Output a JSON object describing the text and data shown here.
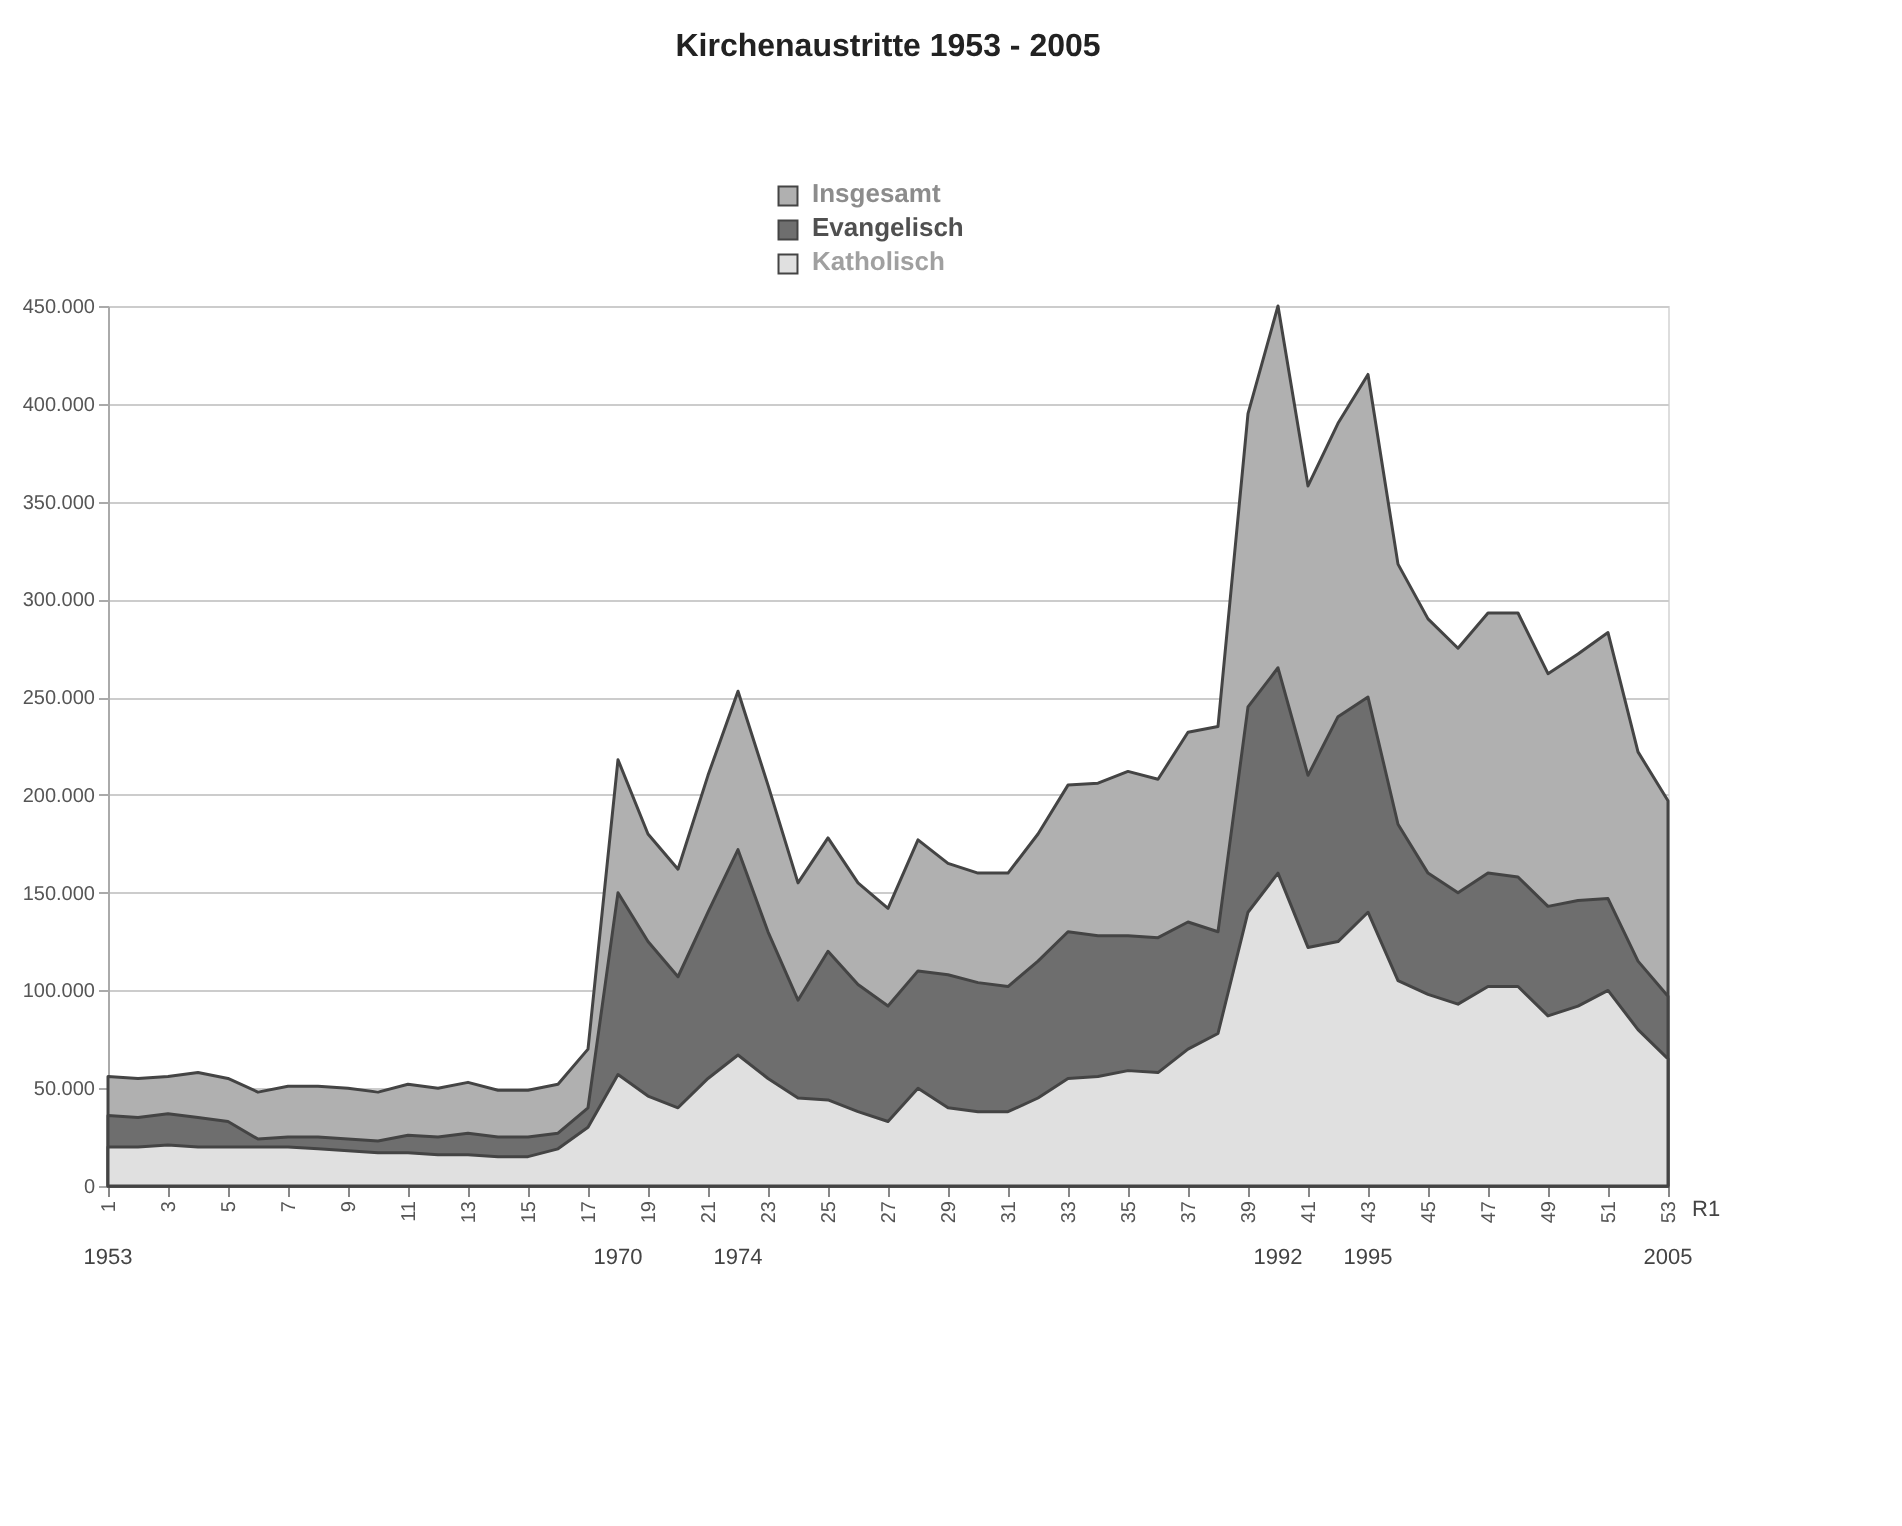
{
  "chart_data": {
    "type": "area",
    "title": "Kirchenaustritte 1953 - 2005",
    "x": [
      1,
      2,
      3,
      4,
      5,
      6,
      7,
      8,
      9,
      10,
      11,
      12,
      13,
      14,
      15,
      16,
      17,
      18,
      19,
      20,
      21,
      22,
      23,
      24,
      25,
      26,
      27,
      28,
      29,
      30,
      31,
      32,
      33,
      34,
      35,
      36,
      37,
      38,
      39,
      40,
      41,
      42,
      43,
      44,
      45,
      46,
      47,
      48,
      49,
      50,
      51,
      52,
      53
    ],
    "series": [
      {
        "name": "Insgesamt",
        "color": "#b0b0b0",
        "values": [
          56000,
          55000,
          56000,
          58000,
          55000,
          48000,
          51000,
          51000,
          50000,
          48000,
          52000,
          50000,
          53000,
          49000,
          49000,
          52000,
          70000,
          218000,
          180000,
          162000,
          210000,
          253000,
          205000,
          155000,
          178000,
          155000,
          142000,
          177000,
          165000,
          160000,
          160000,
          180000,
          205000,
          206000,
          212000,
          208000,
          232000,
          235000,
          395000,
          450000,
          358000,
          390000,
          415000,
          318000,
          290000,
          275000,
          293000,
          293000,
          262000,
          272000,
          283000,
          222000,
          197000
        ]
      },
      {
        "name": "Evangelisch",
        "color": "#6e6e6e",
        "values": [
          36000,
          35000,
          37000,
          35000,
          33000,
          24000,
          25000,
          25000,
          24000,
          23000,
          26000,
          25000,
          27000,
          25000,
          25000,
          27000,
          40000,
          150000,
          125000,
          107000,
          140000,
          172000,
          130000,
          95000,
          120000,
          103000,
          92000,
          110000,
          108000,
          104000,
          102000,
          115000,
          130000,
          128000,
          128000,
          127000,
          135000,
          130000,
          245000,
          265000,
          210000,
          240000,
          250000,
          185000,
          160000,
          150000,
          160000,
          158000,
          143000,
          146000,
          147000,
          115000,
          97000
        ]
      },
      {
        "name": "Katholisch",
        "color": "#e0e0e0",
        "values": [
          20000,
          20000,
          21000,
          20000,
          20000,
          20000,
          20000,
          19000,
          18000,
          17000,
          17000,
          16000,
          16000,
          15000,
          15000,
          19000,
          30000,
          57000,
          46000,
          40000,
          55000,
          67000,
          55000,
          45000,
          44000,
          38000,
          33000,
          50000,
          40000,
          38000,
          38000,
          45000,
          55000,
          56000,
          59000,
          58000,
          70000,
          78000,
          140000,
          160000,
          122000,
          125000,
          140000,
          105000,
          98000,
          93000,
          102000,
          102000,
          87000,
          92000,
          100000,
          80000,
          65000
        ]
      }
    ],
    "xlim": [
      1,
      53
    ],
    "xticks": [
      1,
      3,
      5,
      7,
      9,
      11,
      13,
      15,
      17,
      19,
      21,
      23,
      25,
      27,
      29,
      31,
      33,
      35,
      37,
      39,
      41,
      43,
      45,
      47,
      49,
      51,
      53
    ],
    "ylim": [
      0,
      450000
    ],
    "yticks": [
      0,
      {
        "value": 50000,
        "label": "50.000"
      },
      {
        "value": 100000,
        "label": "100.000"
      },
      {
        "value": 150000,
        "label": "150.000"
      },
      {
        "value": 200000,
        "label": "200.000"
      },
      {
        "value": 250000,
        "label": "250.000"
      },
      {
        "value": 300000,
        "label": "300.000"
      },
      {
        "value": 350000,
        "label": "350.000"
      },
      {
        "value": 400000,
        "label": "400.000"
      },
      {
        "value": 450000,
        "label": "450.000"
      }
    ],
    "grid": "y",
    "legend": "top",
    "annotations": [
      {
        "text": "1953",
        "x": 1,
        "y": 0
      },
      {
        "text": "1970",
        "x": 18,
        "y": 0
      },
      {
        "text": "1974",
        "x": 22,
        "y": 0
      },
      {
        "text": "1992",
        "x": 40,
        "y": 0
      },
      {
        "text": "1995",
        "x": 43,
        "y": 0
      },
      {
        "text": "2005",
        "x": 53,
        "y": 0
      },
      "R1"
    ]
  }
}
